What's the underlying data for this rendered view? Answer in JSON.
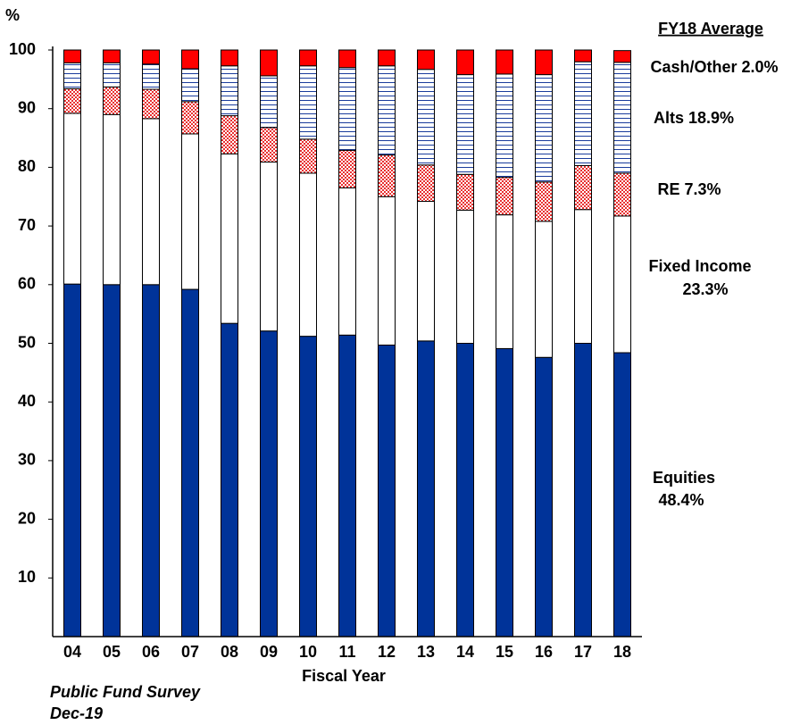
{
  "chart_data": {
    "type": "stacked_bar",
    "y_unit_label": "%",
    "x_label": "Fiscal Year",
    "source": [
      "Public Fund Survey",
      "Dec-19"
    ],
    "annotations": [
      "FY18 Average",
      "Cash/Other 2.0%",
      "Alts 18.9%",
      "RE 7.3%",
      "Fixed Income",
      "23.3%",
      "Equities",
      "48.4%"
    ],
    "categories": [
      "04",
      "05",
      "06",
      "07",
      "08",
      "09",
      "10",
      "11",
      "12",
      "13",
      "14",
      "15",
      "16",
      "17",
      "18"
    ],
    "series": [
      {
        "color": "#003399",
        "pattern": "solid",
        "values": [
          60.1,
          60.0,
          60.0,
          59.2,
          53.4,
          52.1,
          51.2,
          51.4,
          49.7,
          50.4,
          50.0,
          49.1,
          47.6,
          50.0,
          48.4
        ]
      },
      {
        "color": "#ffffff",
        "pattern": "solid",
        "values": [
          29.1,
          29.0,
          28.3,
          26.5,
          28.9,
          28.8,
          27.8,
          25.1,
          25.3,
          23.8,
          22.7,
          22.8,
          23.2,
          22.8,
          23.3
        ]
      },
      {
        "color": "#e83030",
        "pattern": "crosshatch",
        "values": [
          4.2,
          4.7,
          5.0,
          5.5,
          6.5,
          5.9,
          5.8,
          6.4,
          7.1,
          6.2,
          6.1,
          6.4,
          6.7,
          7.5,
          7.3
        ]
      },
      {
        "color": "#1a3c9c",
        "pattern": "horizontal-lines",
        "values": [
          4.4,
          4.1,
          4.3,
          5.6,
          8.5,
          8.8,
          12.5,
          14.1,
          15.2,
          16.3,
          17.0,
          17.6,
          18.3,
          17.7,
          18.9
        ]
      },
      {
        "color": "#ff0000",
        "pattern": "solid",
        "values": [
          2.2,
          2.2,
          2.4,
          3.2,
          2.7,
          4.4,
          2.7,
          3.0,
          2.7,
          3.3,
          4.2,
          4.1,
          4.2,
          2.0,
          2.0
        ]
      }
    ],
    "ylim": [
      0,
      100
    ],
    "yticks": [
      10,
      20,
      30,
      40,
      50,
      60,
      70,
      80,
      90,
      100
    ]
  }
}
